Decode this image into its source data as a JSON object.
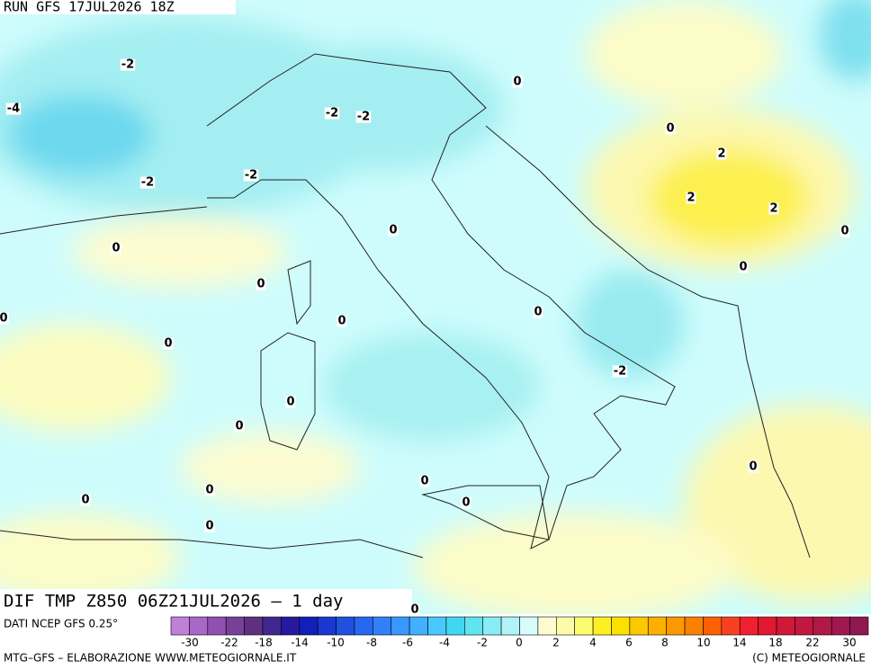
{
  "header": {
    "run": "RUN GFS 17JUL2026 18Z"
  },
  "map": {
    "title": "DIF TMP Z850 06Z21JUL2026 – 1 day",
    "contour_labels": [
      "-2",
      "-4",
      "-2",
      "-2",
      "0",
      "0",
      "2",
      "-2",
      "-2",
      "2",
      "2",
      "0",
      "0",
      "0",
      "0",
      "0",
      "0",
      "0",
      "0",
      "0",
      "-2",
      "0",
      "0",
      "0",
      "0",
      "0",
      "0",
      "0",
      "0",
      "0"
    ]
  },
  "colorbar": {
    "source": "DATI NCEP GFS 0.25°",
    "colors": [
      "#c080d8",
      "#a868c8",
      "#9050b0",
      "#784098",
      "#603080",
      "#402890",
      "#2818a0",
      "#1020b8",
      "#1838d0",
      "#2050e0",
      "#2868f0",
      "#3080f8",
      "#3898ff",
      "#40b0ff",
      "#48c8ff",
      "#40d8f0",
      "#60e4f0",
      "#88ecf4",
      "#b0f4f8",
      "#d8fcfc",
      "#fcfcd0",
      "#fcfca8",
      "#fcfc70",
      "#fcf020",
      "#fce000",
      "#fcc800",
      "#fcb000",
      "#fc9800",
      "#fc8000",
      "#fc6000",
      "#f84020",
      "#f02030",
      "#e01830",
      "#d01838",
      "#c01840",
      "#b01848",
      "#a01850",
      "#901850"
    ],
    "labels": [
      "-30",
      "-22",
      "-18",
      "-14",
      "-10",
      "-8",
      "-6",
      "-4",
      "-2",
      "0",
      "2",
      "4",
      "6",
      "8",
      "10",
      "14",
      "18",
      "22",
      "30"
    ]
  },
  "footer": {
    "left": "MTG–GFS – ELABORAZIONE WWW.METEOGIORNALE.IT",
    "right": "(C) METEOGIORNALE"
  }
}
